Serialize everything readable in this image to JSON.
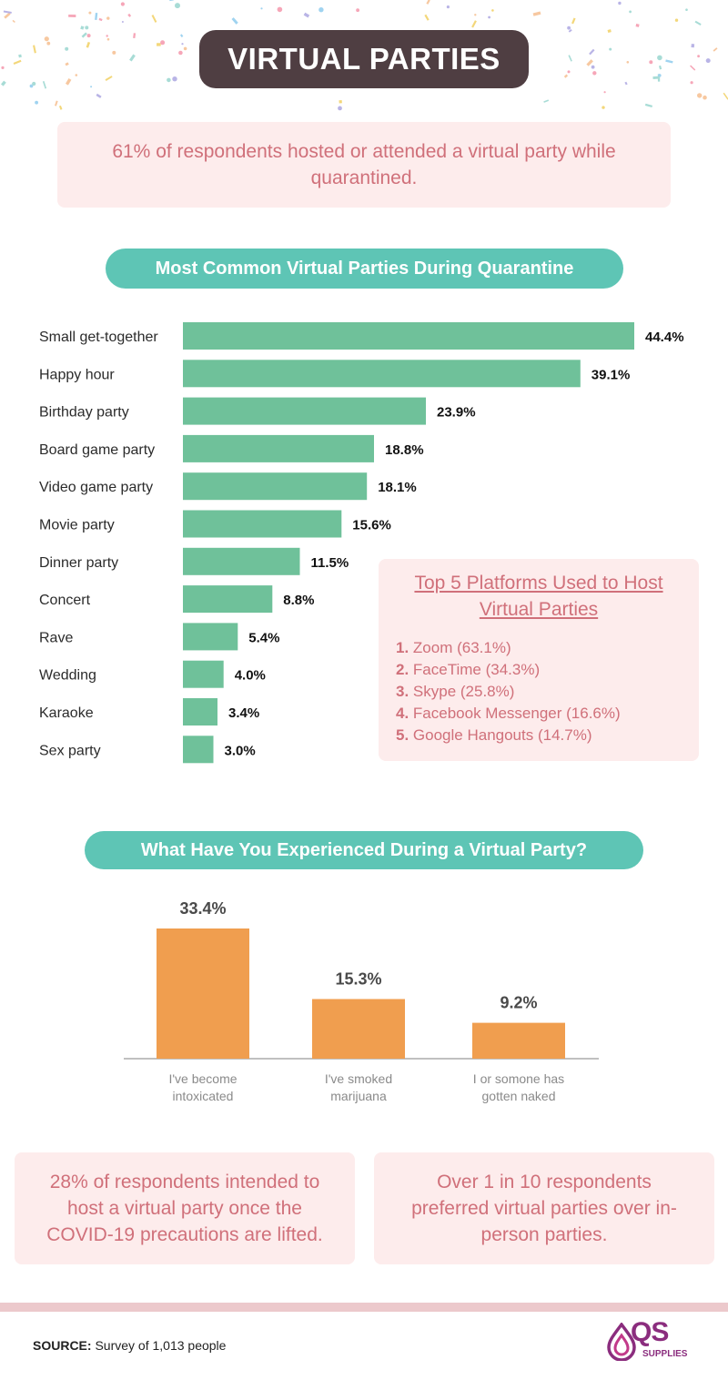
{
  "header": {
    "title": "VIRTUAL PARTIES"
  },
  "intro": {
    "text": "61% of respondents hosted or attended a virtual party while quarantined."
  },
  "section1": {
    "title": "Most Common Virtual Parties During Quarantine"
  },
  "platforms": {
    "title": "Top 5 Platforms Used to Host Virtual Parties",
    "items": [
      {
        "num": "1.",
        "label": "Zoom (63.1%)"
      },
      {
        "num": "2.",
        "label": "FaceTime (34.3%)"
      },
      {
        "num": "3.",
        "label": "Skype (25.8%)"
      },
      {
        "num": "4.",
        "label": "Facebook Messenger (16.6%)"
      },
      {
        "num": "5.",
        "label": "Google Hangouts (14.7%)"
      }
    ]
  },
  "section2": {
    "title": "What Have You Experienced During a Virtual Party?"
  },
  "stat_left": {
    "text": "28% of respondents intended to host a virtual party once the COVID-19 precautions are lifted."
  },
  "stat_right": {
    "text": "Over 1 in 10 respondents preferred virtual parties over in-person parties."
  },
  "source": {
    "label": "SOURCE:",
    "text": " Survey of 1,013 people"
  },
  "logo": {
    "text": "QS",
    "sub": "SUPPLIES"
  },
  "colors": {
    "title_bg": "#4f3e42",
    "teal": "#5ec5b5",
    "green_bar": "#6fc19a",
    "orange_bar": "#f09e4f",
    "pink_bg": "#fdecec",
    "pink_text": "#d0707a"
  },
  "chart_data": [
    {
      "type": "bar",
      "orientation": "horizontal",
      "title": "Most Common Virtual Parties During Quarantine",
      "categories": [
        "Small get-together",
        "Happy hour",
        "Birthday party",
        "Board game party",
        "Video game party",
        "Movie party",
        "Dinner party",
        "Concert",
        "Rave",
        "Wedding",
        "Karaoke",
        "Sex party"
      ],
      "values": [
        44.4,
        39.1,
        23.9,
        18.8,
        18.1,
        15.6,
        11.5,
        8.8,
        5.4,
        4.0,
        3.4,
        3.0
      ],
      "value_labels": [
        "44.4%",
        "39.1%",
        "23.9%",
        "18.8%",
        "18.1%",
        "15.6%",
        "11.5%",
        "8.8%",
        "5.4%",
        "4.0%",
        "3.4%",
        "3.0%"
      ],
      "unit": "%",
      "grid": false
    },
    {
      "type": "bar",
      "orientation": "vertical",
      "title": "What Have You Experienced During a Virtual Party?",
      "categories": [
        [
          "I've become",
          "intoxicated"
        ],
        [
          "I've smoked",
          "marijuana"
        ],
        [
          "I or somone has",
          "gotten naked"
        ]
      ],
      "values": [
        33.4,
        15.3,
        9.2
      ],
      "value_labels": [
        "33.4%",
        "15.3%",
        "9.2%"
      ],
      "unit": "%",
      "grid": false
    }
  ]
}
